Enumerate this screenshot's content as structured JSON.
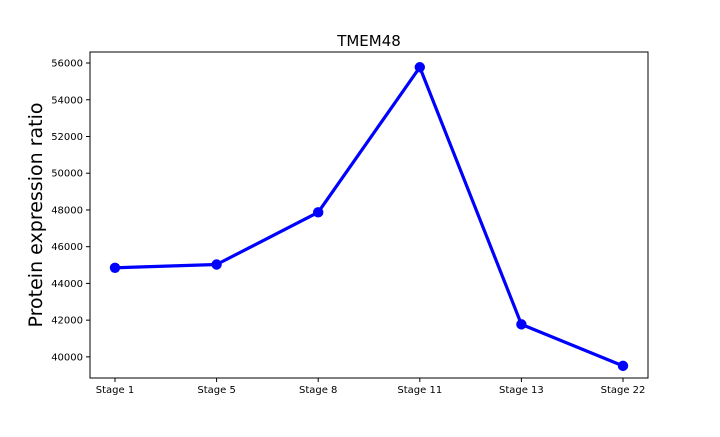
{
  "chart_data": {
    "type": "line",
    "title": "TMEM48",
    "xlabel": "",
    "ylabel": "Protein expression ratio",
    "categories": [
      "Stage 1",
      "Stage 5",
      "Stage 8",
      "Stage 11",
      "Stage 13",
      "Stage 22"
    ],
    "series": [
      {
        "values": [
          44850,
          45030,
          47870,
          55770,
          41770,
          39510
        ],
        "color": "#0000ff",
        "marker": "circle"
      }
    ],
    "ylim": [
      38850,
      56600
    ],
    "yticks": [
      40000,
      42000,
      44000,
      46000,
      48000,
      50000,
      52000,
      54000,
      56000
    ],
    "grid": false,
    "legend": "none"
  }
}
